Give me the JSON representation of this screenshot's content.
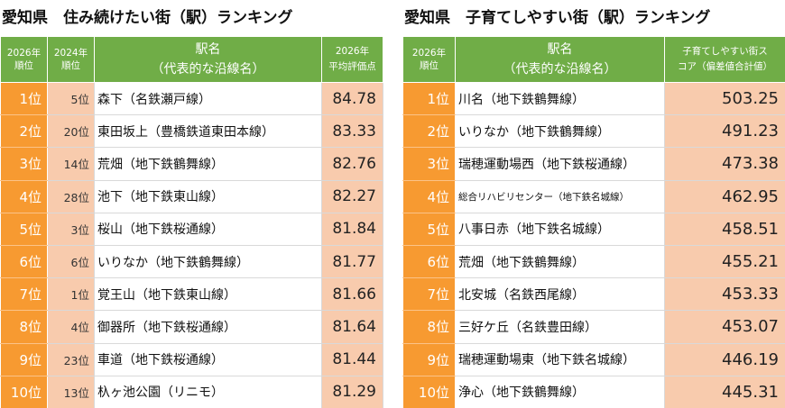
{
  "left": {
    "title": "愛知県　住み続けたい街（駅）ランキング",
    "headers": {
      "rank_line1": "2026年",
      "rank_line2": "順位",
      "prev_line1": "2024年",
      "prev_line2": "順位",
      "name_line1": "駅名",
      "name_line2": "（代表的な沿線名）",
      "score_line1": "2026年",
      "score_line2": "平均評価点"
    },
    "rows": [
      {
        "rank": "1位",
        "prev": "5位",
        "name": "森下（名鉄瀬戸線）",
        "score": "84.78"
      },
      {
        "rank": "2位",
        "prev": "20位",
        "name": "東田坂上（豊橋鉄道東田本線）",
        "score": "83.33"
      },
      {
        "rank": "3位",
        "prev": "14位",
        "name": "荒畑（地下鉄鶴舞線）",
        "score": "82.76"
      },
      {
        "rank": "4位",
        "prev": "28位",
        "name": "池下（地下鉄東山線）",
        "score": "82.27"
      },
      {
        "rank": "5位",
        "prev": "3位",
        "name": "桜山（地下鉄桜通線）",
        "score": "81.84"
      },
      {
        "rank": "6位",
        "prev": "6位",
        "name": "いりなか（地下鉄鶴舞線）",
        "score": "81.77"
      },
      {
        "rank": "7位",
        "prev": "1位",
        "name": "覚王山（地下鉄東山線）",
        "score": "81.66"
      },
      {
        "rank": "8位",
        "prev": "4位",
        "name": "御器所（地下鉄桜通線）",
        "score": "81.64"
      },
      {
        "rank": "9位",
        "prev": "23位",
        "name": "車道（地下鉄桜通線）",
        "score": "81.44"
      },
      {
        "rank": "10位",
        "prev": "13位",
        "name": "杁ヶ池公園（リニモ）",
        "score": "81.29"
      }
    ]
  },
  "right": {
    "title": "愛知県　子育てしやすい街（駅）ランキング",
    "headers": {
      "rank_line1": "2026年",
      "rank_line2": "順位",
      "name_line1": "駅名",
      "name_line2": "（代表的な沿線名）",
      "score_line1": "子育てしやすい街ス",
      "score_line2": "コア（偏差値合計値）"
    },
    "rows": [
      {
        "rank": "1位",
        "name": "川名（地下鉄鶴舞線）",
        "score": "503.25"
      },
      {
        "rank": "2位",
        "name": "いりなか（地下鉄鶴舞線）",
        "score": "491.23"
      },
      {
        "rank": "3位",
        "name": "瑞穂運動場西（地下鉄桜通線）",
        "score": "473.38"
      },
      {
        "rank": "4位",
        "name": "総合リハビリセンター（地下鉄名城線）",
        "score": "462.95"
      },
      {
        "rank": "5位",
        "name": "八事日赤（地下鉄名城線）",
        "score": "458.51"
      },
      {
        "rank": "6位",
        "name": "荒畑（地下鉄鶴舞線）",
        "score": "455.21"
      },
      {
        "rank": "7位",
        "name": "北安城（名鉄西尾線）",
        "score": "453.33"
      },
      {
        "rank": "8位",
        "name": "三好ケ丘（名鉄豊田線）",
        "score": "453.07"
      },
      {
        "rank": "9位",
        "name": "瑞穂運動場東（地下鉄名城線）",
        "score": "446.19"
      },
      {
        "rank": "10位",
        "name": "浄心（地下鉄鶴舞線）",
        "score": "445.31"
      }
    ]
  }
}
